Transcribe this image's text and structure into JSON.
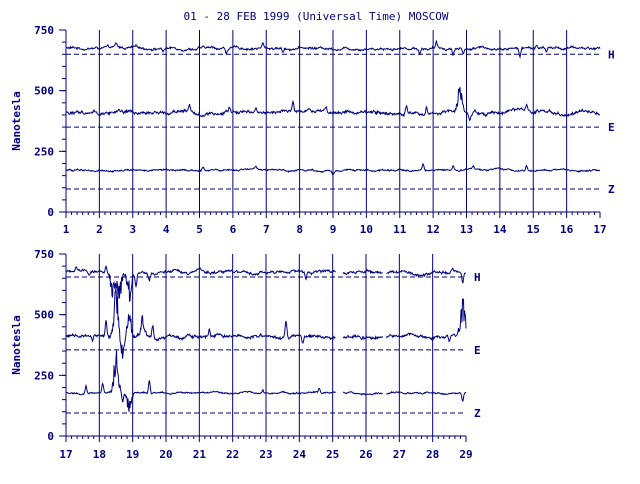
{
  "title": "01 - 28 FEB 1999 (Universal Time) MOSCOW",
  "colors": {
    "ink": "#000080",
    "background": "#ffffff"
  },
  "chart_data": [
    {
      "type": "line",
      "ylabel": "Nanotesla",
      "ylim": [
        0,
        750
      ],
      "yticks": [
        0,
        250,
        500,
        750
      ],
      "xlim": [
        1,
        17
      ],
      "xticks": [
        "1",
        "2",
        "3",
        "4",
        "5",
        "6",
        "7",
        "8",
        "9",
        "10",
        "11",
        "12",
        "13",
        "14",
        "15",
        "16",
        "17"
      ],
      "grid": "vertical lines at each day",
      "series": [
        {
          "name": "H",
          "baseline": 650,
          "mean": 675,
          "noise": 6,
          "spikes": [
            {
              "day": 2.5,
              "amp": 15
            },
            {
              "day": 3.9,
              "amp": -12
            },
            {
              "day": 5.8,
              "amp": -20
            },
            {
              "day": 6.9,
              "amp": 18
            },
            {
              "day": 7.5,
              "amp": -15
            },
            {
              "day": 11.6,
              "amp": -18
            },
            {
              "day": 12.1,
              "amp": 20
            },
            {
              "day": 12.6,
              "amp": -25
            },
            {
              "day": 12.9,
              "amp": -20
            },
            {
              "day": 14.6,
              "amp": -40
            },
            {
              "day": 15.1,
              "amp": 15
            },
            {
              "day": 15.4,
              "amp": -18
            }
          ]
        },
        {
          "name": "E",
          "baseline": 350,
          "mean": 410,
          "noise": 8,
          "spikes": [
            {
              "day": 4.7,
              "amp": 22
            },
            {
              "day": 5.9,
              "amp": 18
            },
            {
              "day": 6.7,
              "amp": 28
            },
            {
              "day": 7.8,
              "amp": 35
            },
            {
              "day": 8.8,
              "amp": 22
            },
            {
              "day": 11.2,
              "amp": 28
            },
            {
              "day": 11.8,
              "amp": 30
            },
            {
              "day": 12.8,
              "amp": 95
            },
            {
              "day": 13.1,
              "amp": -30
            },
            {
              "day": 14.8,
              "amp": 25
            }
          ]
        },
        {
          "name": "Z",
          "baseline": 95,
          "mean": 172,
          "noise": 4,
          "spikes": [
            {
              "day": 5.1,
              "amp": 12
            },
            {
              "day": 6.7,
              "amp": 10
            },
            {
              "day": 9.0,
              "amp": -12
            },
            {
              "day": 11.7,
              "amp": 25
            },
            {
              "day": 12.6,
              "amp": 18
            },
            {
              "day": 13.2,
              "amp": 14
            },
            {
              "day": 14.8,
              "amp": 22
            }
          ]
        }
      ]
    },
    {
      "type": "line",
      "ylabel": "Nanotesla",
      "ylim": [
        0,
        750
      ],
      "yticks": [
        0,
        250,
        500,
        750
      ],
      "xlim": [
        17,
        29
      ],
      "xticks": [
        "17",
        "18",
        "19",
        "20",
        "21",
        "22",
        "23",
        "24",
        "25",
        "26",
        "27",
        "28",
        "29"
      ],
      "grid": "vertical lines at each day",
      "data_gaps": [
        [
          25.1,
          25.3
        ],
        [
          26.5,
          26.6
        ]
      ],
      "series": [
        {
          "name": "H",
          "baseline": 655,
          "mean": 675,
          "noise": 7,
          "spikes": [
            {
              "day": 17.3,
              "amp": 18
            },
            {
              "day": 17.7,
              "amp": -20
            },
            {
              "day": 18.2,
              "amp": 25
            },
            {
              "day": 18.4,
              "amp": -80
            },
            {
              "day": 18.6,
              "amp": -110
            },
            {
              "day": 18.9,
              "amp": -100
            },
            {
              "day": 19.1,
              "amp": -60
            },
            {
              "day": 19.5,
              "amp": -30
            },
            {
              "day": 24.2,
              "amp": -35
            },
            {
              "day": 28.6,
              "amp": 15
            },
            {
              "day": 28.9,
              "amp": -50
            }
          ]
        },
        {
          "name": "E",
          "baseline": 355,
          "mean": 410,
          "noise": 8,
          "spikes": [
            {
              "day": 17.8,
              "amp": -30
            },
            {
              "day": 18.2,
              "amp": 60
            },
            {
              "day": 18.5,
              "amp": 170
            },
            {
              "day": 18.7,
              "amp": -70
            },
            {
              "day": 18.9,
              "amp": 90
            },
            {
              "day": 19.3,
              "amp": 70
            },
            {
              "day": 19.6,
              "amp": 50
            },
            {
              "day": 21.3,
              "amp": 35
            },
            {
              "day": 23.6,
              "amp": 60
            },
            {
              "day": 24.1,
              "amp": -25
            },
            {
              "day": 28.5,
              "amp": -30
            },
            {
              "day": 28.9,
              "amp": 140
            }
          ]
        },
        {
          "name": "Z",
          "baseline": 95,
          "mean": 178,
          "noise": 4,
          "spikes": [
            {
              "day": 17.6,
              "amp": 30
            },
            {
              "day": 18.1,
              "amp": 40
            },
            {
              "day": 18.5,
              "amp": 140
            },
            {
              "day": 18.7,
              "amp": -40
            },
            {
              "day": 18.9,
              "amp": -70
            },
            {
              "day": 19.5,
              "amp": 50
            },
            {
              "day": 22.9,
              "amp": 12
            },
            {
              "day": 24.6,
              "amp": 18
            },
            {
              "day": 28.9,
              "amp": -35
            }
          ]
        }
      ]
    }
  ]
}
